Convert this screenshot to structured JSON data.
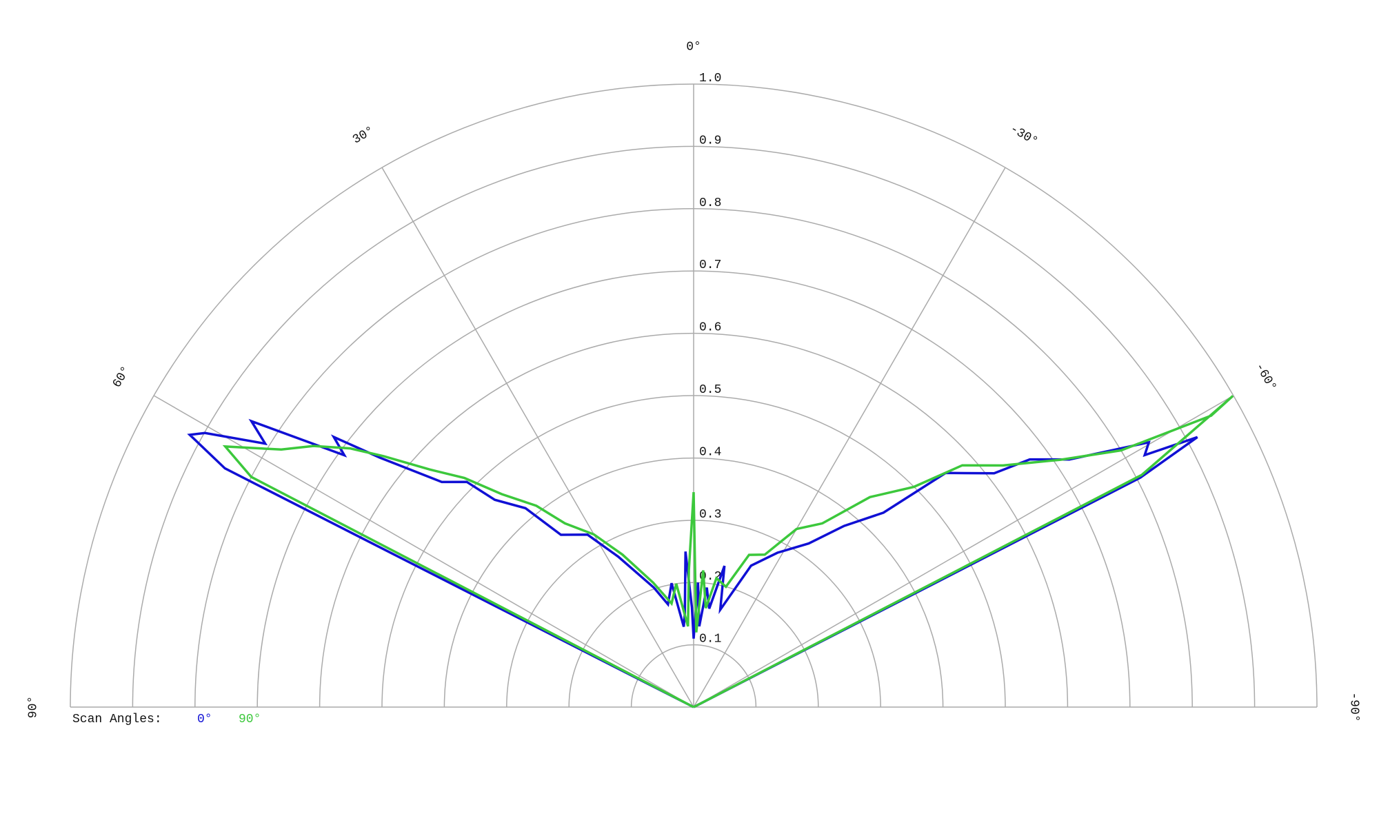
{
  "chart_data": {
    "type": "polar",
    "rlim": [
      0,
      1
    ],
    "rticks": [
      0.1,
      0.2,
      0.3,
      0.4,
      0.5,
      0.6,
      0.7,
      0.8,
      0.9,
      {
        "value": 1,
        "label": "1.0"
      }
    ],
    "thetaticks": [
      {
        "value": 90,
        "label": "90°"
      },
      {
        "value": 60,
        "label": "60°"
      },
      {
        "value": 30,
        "label": "30°"
      },
      {
        "value": 0,
        "label": "0°"
      },
      {
        "value": -30,
        "label": "-30°"
      },
      {
        "value": -60,
        "label": "-60°"
      },
      {
        "value": -90,
        "label": "-90°"
      }
    ],
    "legend_title": "Scan Angles:",
    "series": [
      {
        "name": "0°",
        "color": "#1010d4",
        "theta": [
          90,
          63.0,
          61.6,
          60.7,
          58.4,
          57.1,
          54.2,
          53.1,
          51.5,
          48.2,
          45.2,
          43.8,
          40.2,
          37.6,
          31.6,
          26.6,
          18.4,
          14,
          10.1,
          7,
          5.4,
          3,
          1,
          0,
          -2,
          -4,
          -6.3,
          -9,
          -12.3,
          -15.3,
          -22.1,
          -28.5,
          -35.1,
          -39.7,
          -44.3,
          -47.1,
          -52.1,
          -53.6,
          -56.6,
          -59.8,
          -60.8,
          -61.8,
          -62.8,
          -90
        ],
        "values": [
          0,
          0.844,
          0.919,
          0.899,
          0.807,
          0.845,
          0.691,
          0.722,
          0.643,
          0.542,
          0.513,
          0.461,
          0.418,
          0.349,
          0.325,
          0.27,
          0.202,
          0.17,
          0.202,
          0.13,
          0.15,
          0.25,
          0.16,
          0.11,
          0.2,
          0.13,
          0.193,
          0.16,
          0.232,
          0.162,
          0.245,
          0.282,
          0.321,
          0.378,
          0.436,
          0.552,
          0.611,
          0.67,
          0.722,
          0.845,
          0.829,
          0.917,
          0.806,
          0
        ]
      },
      {
        "name": "90°",
        "color": "#3cc83c",
        "theta": [
          90,
          62.5,
          60.9,
          58,
          55.5,
          53,
          51,
          48,
          45,
          42,
          38,
          35,
          30,
          25,
          18,
          12,
          8,
          4,
          2,
          0,
          -2,
          -4,
          -7,
          -10,
          -15,
          -20,
          -25,
          -30,
          -35,
          -40,
          -45,
          -48,
          -52,
          -56,
          -59,
          -60.6,
          -60.0,
          -62.6,
          -90
        ],
        "values": [
          0,
          0.8,
          0.86,
          0.78,
          0.74,
          0.69,
          0.64,
          0.57,
          0.52,
          0.46,
          0.41,
          0.36,
          0.32,
          0.27,
          0.21,
          0.17,
          0.2,
          0.13,
          0.22,
          0.345,
          0.12,
          0.22,
          0.16,
          0.21,
          0.2,
          0.26,
          0.27,
          0.33,
          0.36,
          0.44,
          0.5,
          0.58,
          0.63,
          0.71,
          0.8,
          0.953,
          0.999,
          0.81,
          0
        ]
      }
    ]
  }
}
